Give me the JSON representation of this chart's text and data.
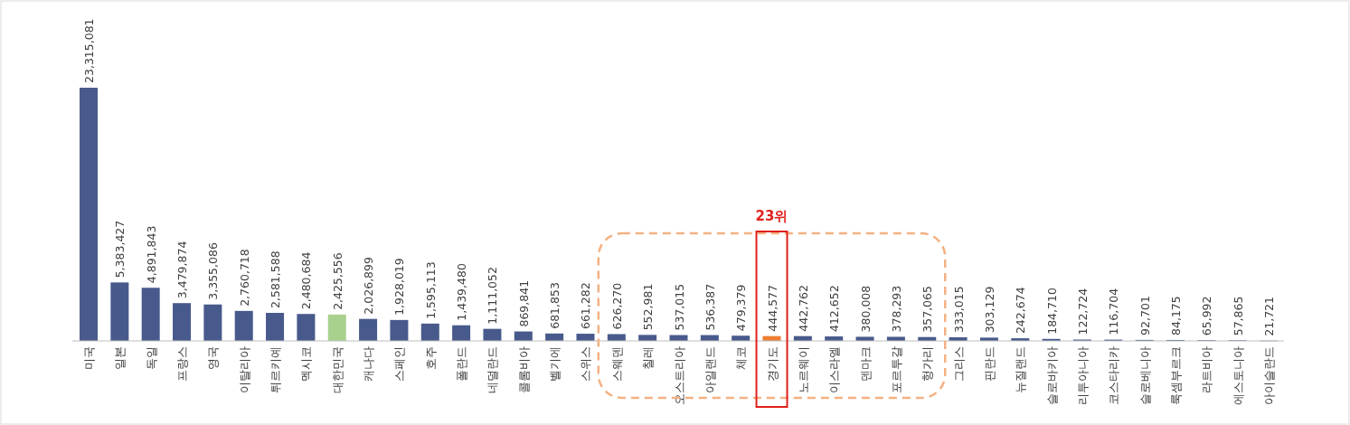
{
  "chart_data": {
    "type": "bar",
    "categories": [
      "미국",
      "일본",
      "독일",
      "프랑스",
      "영국",
      "이탈리아",
      "튀르키예",
      "멕시코",
      "대한민국",
      "캐나다",
      "스페인",
      "호주",
      "폴란드",
      "네덜란드",
      "콜롬비아",
      "벨기에",
      "스위스",
      "스웨덴",
      "칠레",
      "오스트리아",
      "아일랜드",
      "체코",
      "경기도",
      "노르웨이",
      "이스라엘",
      "덴마크",
      "포르투갈",
      "헝가리",
      "그리스",
      "핀란드",
      "뉴질랜드",
      "슬로바키아",
      "리투아니아",
      "코스타리카",
      "슬로베니아",
      "룩셈부르크",
      "라트비아",
      "에스토니아",
      "아이슬란드"
    ],
    "values": [
      23315081,
      5383427,
      4891843,
      3479874,
      3355086,
      2760718,
      2581588,
      2480684,
      2425556,
      2026899,
      1928019,
      1595113,
      1439480,
      1111052,
      869841,
      681853,
      661282,
      626270,
      552981,
      537015,
      536387,
      479379,
      444577,
      442762,
      412652,
      380008,
      378293,
      357065,
      333015,
      303129,
      242674,
      184710,
      122724,
      116704,
      92701,
      84175,
      65992,
      57865,
      21721
    ],
    "colors": [
      "#4a5a8a",
      "#485a8c",
      "#485a8c",
      "#485a8c",
      "#485a8c",
      "#485a8c",
      "#485a8c",
      "#485a8c",
      "#a9d18e",
      "#485a8c",
      "#485a8c",
      "#485a8c",
      "#485a8c",
      "#485a8c",
      "#485a8c",
      "#485a8c",
      "#485a8c",
      "#485a8c",
      "#485a8c",
      "#485a8c",
      "#485a8c",
      "#485a8c",
      "#ed7d31",
      "#485a8c",
      "#485a8c",
      "#485a8c",
      "#485a8c",
      "#485a8c",
      "#485a8c",
      "#485a8c",
      "#485a8c",
      "#485a8c",
      "#485a8c",
      "#485a8c",
      "#485a8c",
      "#485a8c",
      "#485a8c",
      "#485a8c",
      "#485a8c"
    ],
    "value_labels": [
      "23,315,081",
      "5,383,427",
      "4,891,843",
      "3,479,874",
      "3,355,086",
      "2,760,718",
      "2,581,588",
      "2,480,684",
      "2,425,556",
      "2,026,899",
      "1,928,019",
      "1,595,113",
      "1,439,480",
      "1,111,052",
      "869,841",
      "681,853",
      "661,282",
      "626,270",
      "552,981",
      "537,015",
      "536,387",
      "479,379",
      "444,577",
      "442,762",
      "412,652",
      "380,008",
      "378,293",
      "357,065",
      "333,015",
      "303,129",
      "242,674",
      "184,710",
      "122,724",
      "116,704",
      "92,701",
      "84,175",
      "65,992",
      "57,865",
      "21,721"
    ],
    "annotations": [
      "23위"
    ]
  }
}
